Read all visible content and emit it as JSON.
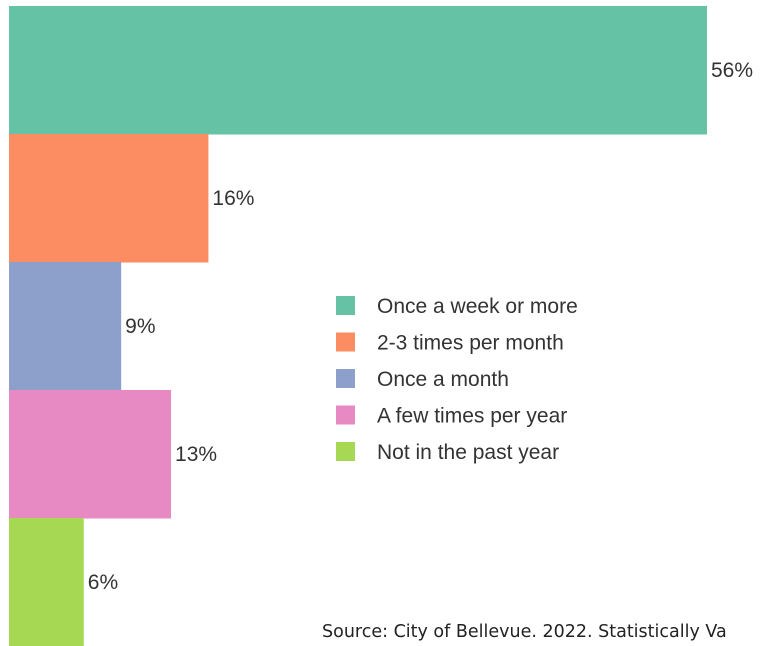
{
  "chart_data": {
    "type": "bar",
    "orientation": "horizontal",
    "categories": [
      "Once a week or more",
      "2-3 times per month",
      "Once a month",
      "A few times per year",
      "Not in the past year"
    ],
    "values": [
      56,
      16,
      9,
      13,
      6
    ],
    "data_labels": [
      "56%",
      "16%",
      "9%",
      "13%",
      "6%"
    ],
    "value_unit": "%",
    "colors": [
      "#66c2a5",
      "#fc8d62",
      "#8da0cb",
      "#e78ac3",
      "#a6d854"
    ],
    "xlim": [
      0,
      56
    ],
    "grid": false,
    "legend": {
      "placement": "right",
      "entries": [
        "Once a week or more",
        "2-3 times per month",
        "Once a month",
        "A few times per year",
        "Not in the past year"
      ]
    }
  },
  "source": "Source: City of Bellevue. 2022. Statistically Va"
}
